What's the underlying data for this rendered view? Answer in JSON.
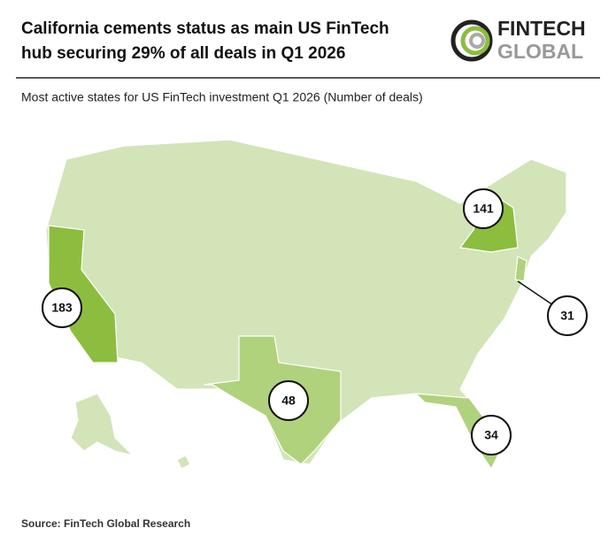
{
  "header": {
    "title": [
      "California cements status as main US FinTech",
      "hub securing 29% of all deals in Q1 2026"
    ],
    "logo": [
      "FINTECH",
      "GLOBAL"
    ]
  },
  "subtitle": "Most active states for US FinTech investment Q1 2026 (Number of deals)",
  "map": {
    "labels": [
      183,
      141,
      48,
      34,
      31
    ]
  },
  "source": "Source: FinTech Global Research"
}
